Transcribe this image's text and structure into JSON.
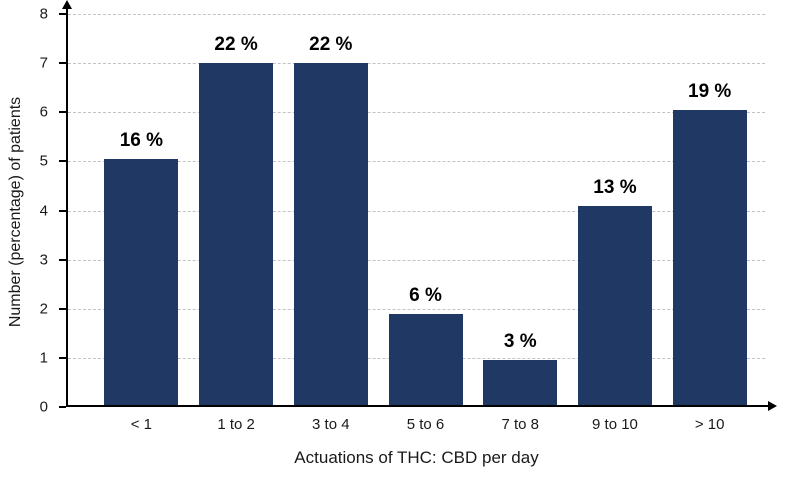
{
  "chart_data": {
    "type": "bar",
    "title": "",
    "xlabel": "Actuations of THC: CBD per day",
    "ylabel": "Number (percentage) of patients",
    "categories": [
      "< 1",
      "1 to 2",
      "3 to 4",
      "5 to 6",
      "7 to 8",
      "9 to 10",
      "> 10"
    ],
    "values": [
      5.05,
      7,
      7,
      1.9,
      0.95,
      4.1,
      6.05
    ],
    "bar_labels": [
      "16 %",
      "22 %",
      "22 %",
      "6 %",
      "3 %",
      "13 %",
      "19 %"
    ],
    "ylim": [
      0,
      8
    ],
    "yticks": [
      0,
      1,
      2,
      3,
      4,
      5,
      6,
      7,
      8
    ],
    "grid": "horizontal-dashed",
    "gridline_color": "#c3c3c3",
    "bar_color": "#1f3864",
    "legend": "none",
    "axis_arrows": true
  }
}
